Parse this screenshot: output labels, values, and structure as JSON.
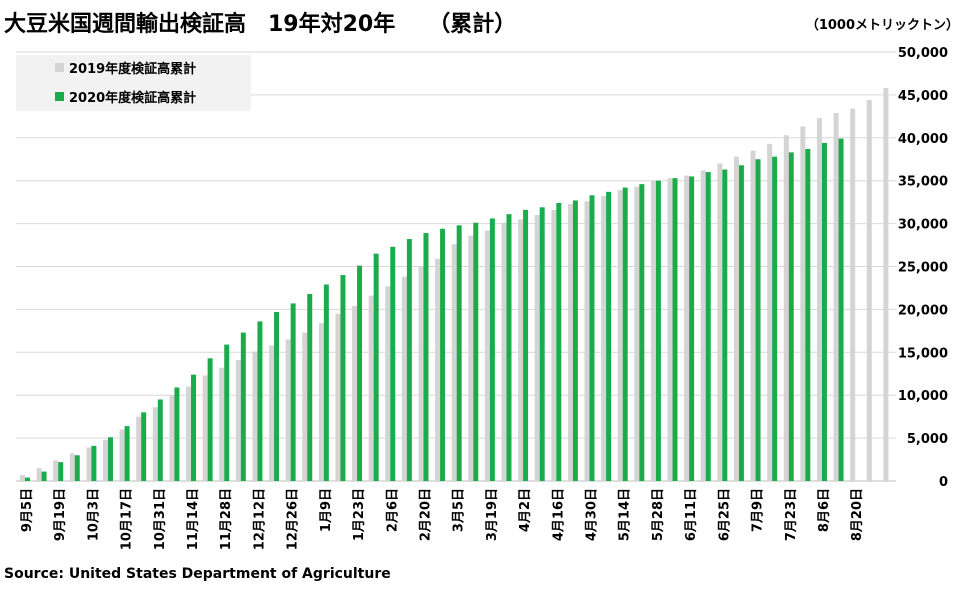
{
  "title": "大豆米国週間輸出検証高　19年対20年　　（累計）",
  "unit_label": "（1000メトリックトン）",
  "source": "Source: United States Department of Agriculture",
  "colors": {
    "series_2019": "#d4d4d4",
    "series_2020": "#1aab4b",
    "grid": "#d9d9d9",
    "legend_bg": "#f2f2f2"
  },
  "chart_data": {
    "type": "bar",
    "title": "大豆米国週間輸出検証高　19年対20年　　（累計）",
    "ylabel": "（1000メトリックトン）",
    "xlabel": "",
    "ylim": [
      0,
      50000
    ],
    "yticks": [
      0,
      5000,
      10000,
      15000,
      20000,
      25000,
      30000,
      35000,
      40000,
      45000,
      50000
    ],
    "ytick_labels": [
      "0",
      "5,000",
      "10,000",
      "15,000",
      "20,000",
      "25,000",
      "30,000",
      "35,000",
      "40,000",
      "45,000",
      "50,000"
    ],
    "legend_position": "top-left",
    "grid": true,
    "x_labels": [
      "9月5日",
      "9月19日",
      "10月3日",
      "10月17日",
      "10月31日",
      "11月14日",
      "11月28日",
      "12月12日",
      "12月26日",
      "1月9日",
      "1月23日",
      "2月6日",
      "2月20日",
      "3月5日",
      "3月19日",
      "4月2日",
      "4月16日",
      "4月30日",
      "5月14日",
      "5月28日",
      "6月11日",
      "6月25日",
      "7月9日",
      "7月23日",
      "8月6日",
      "8月20日"
    ],
    "series": [
      {
        "name": "2019年度検証高累計",
        "values": [
          700,
          1500,
          2400,
          3200,
          3900,
          4800,
          6000,
          7500,
          8600,
          10000,
          11000,
          12300,
          13200,
          14100,
          15100,
          15800,
          16500,
          17300,
          18400,
          19500,
          20400,
          21600,
          22700,
          23800,
          25000,
          25900,
          27600,
          28600,
          29200,
          30100,
          30500,
          31000,
          31600,
          32300,
          32600,
          33200,
          33900,
          34300,
          35000,
          35300,
          35600,
          36200,
          37000,
          37800,
          38500,
          39300,
          40300,
          41300,
          42300,
          42900,
          43400,
          44400,
          45800
        ]
      },
      {
        "name": "2020年度検証高累計",
        "values": [
          400,
          1100,
          2200,
          3000,
          4100,
          5100,
          6400,
          8000,
          9500,
          10900,
          12400,
          14300,
          15900,
          17300,
          18600,
          19700,
          20700,
          21800,
          22900,
          24000,
          25100,
          26500,
          27300,
          28200,
          28900,
          29400,
          29800,
          30100,
          30600,
          31100,
          31600,
          31900,
          32400,
          32700,
          33300,
          33700,
          34200,
          34600,
          35000,
          35300,
          35500,
          36000,
          36300,
          36800,
          37500,
          37800,
          38300,
          38700,
          39400,
          39900
        ]
      }
    ]
  }
}
